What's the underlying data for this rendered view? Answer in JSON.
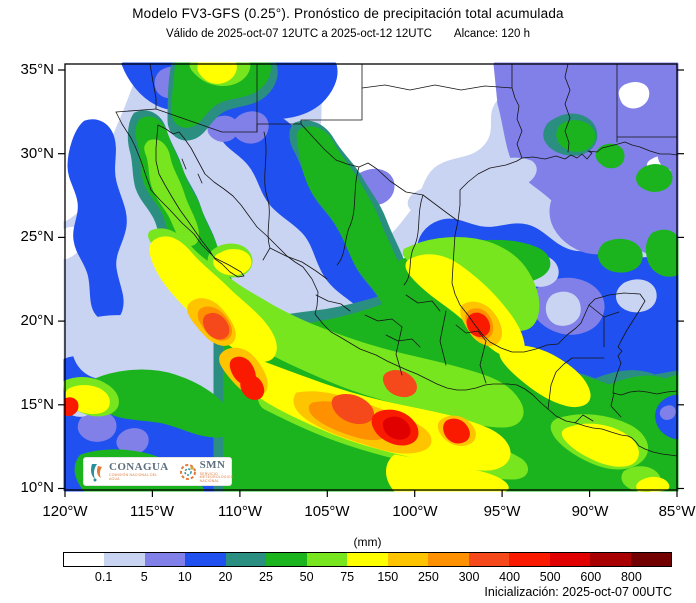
{
  "header": {
    "title": "Modelo FV3-GFS (0.25°). Pronóstico de precipitación total acumulada",
    "subtitle_valid": "Válido de 2025-oct-07 12UTC a 2025-oct-12 12UTC",
    "subtitle_reach": "Alcance: 120 h"
  },
  "map": {
    "y_axis_labels": [
      "35°N",
      "30°N",
      "25°N",
      "20°N",
      "15°N",
      "10°N"
    ],
    "x_axis_labels": [
      "120°W",
      "115°W",
      "110°W",
      "105°W",
      "100°W",
      "95°W",
      "90°W",
      "85°W"
    ]
  },
  "colorbar": {
    "units_label": "(mm)",
    "tick_labels": [
      "0.1",
      "5",
      "10",
      "20",
      "25",
      "50",
      "75",
      "150",
      "250",
      "300",
      "400",
      "500",
      "600",
      "800"
    ],
    "colors": [
      "#ffffff",
      "#c9d3f2",
      "#8080e8",
      "#2050f0",
      "#2a8f80",
      "#1cb41e",
      "#77e61e",
      "#ffff00",
      "#ffc400",
      "#ff9000",
      "#f5491b",
      "#fa1a00",
      "#e00000",
      "#a80000",
      "#730000"
    ]
  },
  "footer": {
    "init_label": "Inicialización: 2025-oct-07 00UTC"
  },
  "logos": {
    "conagua": "CONAGUA",
    "conagua_tagline": "COMISIÓN NACIONAL DEL AGUA",
    "smn": "SMN",
    "smn_tagline": "SERVICIO METEOROLÓGICO NACIONAL"
  }
}
